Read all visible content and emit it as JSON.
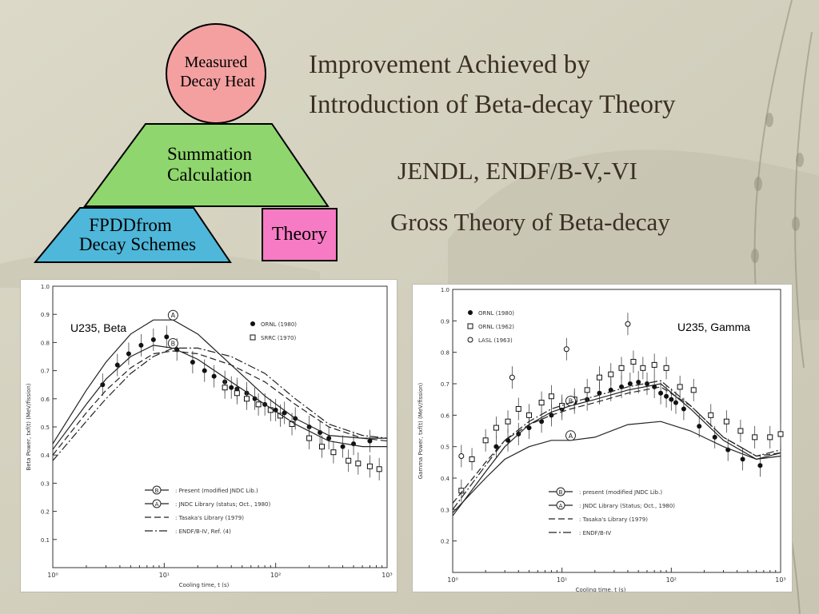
{
  "slide": {
    "title_line1": "Improvement Achieved by",
    "title_line2": "Introduction of Beta-decay Theory",
    "subtitle1": "JENDL, ENDF/B-V,-VI",
    "subtitle2": "Gross Theory of Beta-decay"
  },
  "diagram": {
    "circle_line1": "Measured",
    "circle_line2": "Decay Heat",
    "summation_line1": "Summation",
    "summation_line2": "Calculation",
    "fpdd_line1": "FPDDfrom",
    "fpdd_line2": "Decay Schemes",
    "theory": "Theory",
    "colors": {
      "circle": "#f4a0a0",
      "summation": "#8fd66e",
      "fpdd": "#4fb7d9",
      "theory": "#f77bc4"
    }
  },
  "chart_data": [
    {
      "type": "line",
      "title": "U235, Beta",
      "xlabel": "Cooling time, t (s)",
      "ylabel": "Beta Power, txf(t) (MeV/fission)",
      "xscale": "log",
      "xlim": [
        1,
        1000
      ],
      "ylim": [
        0.0,
        1.0
      ],
      "x_ticks": [
        "10⁰",
        "10¹",
        "10²",
        "10³"
      ],
      "y_ticks": [
        "0.1",
        "0.2",
        "0.3",
        "0.4",
        "0.5",
        "0.6",
        "0.7",
        "0.8",
        "0.9",
        "1.0"
      ],
      "series": [
        {
          "name": "ORNL (1980)",
          "marker": "filled-circle",
          "x": [
            2.8,
            3.8,
            4.8,
            6.2,
            8,
            10.5,
            13,
            18,
            23,
            28,
            35,
            40,
            45,
            55,
            65,
            80,
            100,
            120,
            150,
            200,
            250,
            300,
            400,
            500,
            700
          ],
          "y": [
            0.65,
            0.72,
            0.76,
            0.79,
            0.81,
            0.82,
            0.775,
            0.73,
            0.7,
            0.68,
            0.66,
            0.64,
            0.635,
            0.62,
            0.6,
            0.58,
            0.56,
            0.55,
            0.53,
            0.5,
            0.48,
            0.46,
            0.43,
            0.44,
            0.45
          ]
        },
        {
          "name": "SRRC (1970)",
          "marker": "open-square",
          "x": [
            35,
            45,
            55,
            70,
            90,
            110,
            140,
            200,
            260,
            330,
            450,
            550,
            700,
            850
          ],
          "y": [
            0.64,
            0.62,
            0.6,
            0.58,
            0.56,
            0.54,
            0.51,
            0.46,
            0.43,
            0.41,
            0.38,
            0.37,
            0.36,
            0.35
          ]
        },
        {
          "name": "Present (modified JNDC Lib.)",
          "label": "B",
          "x": [
            1,
            2,
            3,
            5,
            8,
            12,
            20,
            40,
            80,
            150,
            300,
            600,
            1000
          ],
          "y": [
            0.42,
            0.58,
            0.67,
            0.75,
            0.79,
            0.78,
            0.74,
            0.66,
            0.58,
            0.51,
            0.45,
            0.43,
            0.43
          ]
        },
        {
          "name": "JNDC Library (status; Oct., 1980)",
          "label": "A",
          "x": [
            1,
            2,
            3,
            5,
            8,
            12,
            20,
            40,
            80,
            150,
            300,
            600,
            1000
          ],
          "y": [
            0.44,
            0.63,
            0.73,
            0.83,
            0.88,
            0.88,
            0.83,
            0.72,
            0.61,
            0.53,
            0.47,
            0.46,
            0.46
          ]
        },
        {
          "name": "Tasaka's Library (1979)",
          "x": [
            1,
            2,
            3,
            5,
            8,
            12,
            20,
            40,
            80,
            150,
            300,
            600,
            1000
          ],
          "y": [
            0.4,
            0.55,
            0.63,
            0.71,
            0.76,
            0.77,
            0.76,
            0.72,
            0.66,
            0.58,
            0.5,
            0.46,
            0.45
          ]
        },
        {
          "name": "ENDF/B-IV, Ref. (4)",
          "x": [
            1,
            2,
            3,
            5,
            8,
            12,
            20,
            40,
            80,
            150,
            300,
            600,
            1000
          ],
          "y": [
            0.38,
            0.52,
            0.6,
            0.69,
            0.75,
            0.78,
            0.78,
            0.75,
            0.69,
            0.6,
            0.51,
            0.47,
            0.46
          ]
        }
      ]
    },
    {
      "type": "line",
      "title": "U235, Gamma",
      "xlabel": "Cooling time, t (s)",
      "ylabel": "Gamma Power, txf(t) (MeV/fission)",
      "xscale": "log",
      "xlim": [
        1,
        1000
      ],
      "ylim": [
        0.1,
        1.0
      ],
      "x_ticks": [
        "10⁰",
        "10¹",
        "10²",
        "10³"
      ],
      "y_ticks": [
        "0.2",
        "0.3",
        "0.4",
        "0.5",
        "0.6",
        "0.7",
        "0.8",
        "0.9",
        "1.0"
      ],
      "series": [
        {
          "name": "ORNL (1980)",
          "marker": "filled-circle",
          "x": [
            2.5,
            3.2,
            4,
            5,
            6.5,
            8,
            10,
            13,
            17,
            22,
            28,
            35,
            42,
            50,
            60,
            70,
            80,
            90,
            100,
            110,
            130,
            180,
            250,
            330,
            450,
            650
          ],
          "y": [
            0.5,
            0.52,
            0.54,
            0.56,
            0.58,
            0.6,
            0.62,
            0.64,
            0.65,
            0.67,
            0.68,
            0.69,
            0.7,
            0.705,
            0.7,
            0.69,
            0.67,
            0.66,
            0.65,
            0.64,
            0.62,
            0.565,
            0.53,
            0.49,
            0.46,
            0.44
          ]
        },
        {
          "name": "ORNL (1962)",
          "marker": "open-square",
          "x": [
            1.2,
            1.5,
            2,
            2.5,
            3.2,
            4,
            5,
            6.5,
            8,
            10,
            13,
            17,
            22,
            28,
            35,
            45,
            55,
            70,
            90,
            120,
            160,
            230,
            320,
            430,
            580,
            800,
            1000
          ],
          "y": [
            0.36,
            0.46,
            0.52,
            0.56,
            0.58,
            0.62,
            0.6,
            0.64,
            0.66,
            0.63,
            0.65,
            0.68,
            0.72,
            0.73,
            0.75,
            0.77,
            0.75,
            0.76,
            0.75,
            0.69,
            0.68,
            0.6,
            0.58,
            0.55,
            0.53,
            0.53,
            0.54
          ]
        },
        {
          "name": "LASL (1963)",
          "marker": "open-circle",
          "x": [
            1.2,
            3.5,
            11,
            40
          ],
          "y": [
            0.47,
            0.72,
            0.81,
            0.89
          ]
        },
        {
          "name": "present (modified JNDC Lib.)",
          "label": "B",
          "x": [
            1,
            2,
            3,
            5,
            8,
            12,
            20,
            40,
            80,
            150,
            300,
            600,
            1000
          ],
          "y": [
            0.28,
            0.42,
            0.5,
            0.57,
            0.61,
            0.63,
            0.65,
            0.68,
            0.7,
            0.62,
            0.52,
            0.46,
            0.48
          ]
        },
        {
          "name": "JNDC Library (Status; Oct., 1980)",
          "label": "A",
          "x": [
            1,
            2,
            3,
            5,
            8,
            12,
            20,
            40,
            80,
            150,
            300,
            600,
            1000
          ],
          "y": [
            0.29,
            0.4,
            0.46,
            0.5,
            0.52,
            0.52,
            0.53,
            0.57,
            0.58,
            0.55,
            0.5,
            0.46,
            0.47
          ]
        },
        {
          "name": "Tasaka's Library (1979)",
          "x": [
            1,
            2,
            3,
            5,
            8,
            12,
            20,
            40,
            80,
            150,
            300,
            600,
            1000
          ],
          "y": [
            0.32,
            0.45,
            0.52,
            0.57,
            0.6,
            0.62,
            0.64,
            0.67,
            0.69,
            0.63,
            0.53,
            0.47,
            0.48
          ]
        },
        {
          "name": "ENDF/B-IV",
          "x": [
            1,
            2,
            3,
            5,
            8,
            12,
            20,
            40,
            80,
            150,
            300,
            600,
            1000
          ],
          "y": [
            0.3,
            0.44,
            0.52,
            0.58,
            0.62,
            0.64,
            0.66,
            0.69,
            0.71,
            0.63,
            0.53,
            0.47,
            0.49
          ]
        }
      ]
    }
  ]
}
